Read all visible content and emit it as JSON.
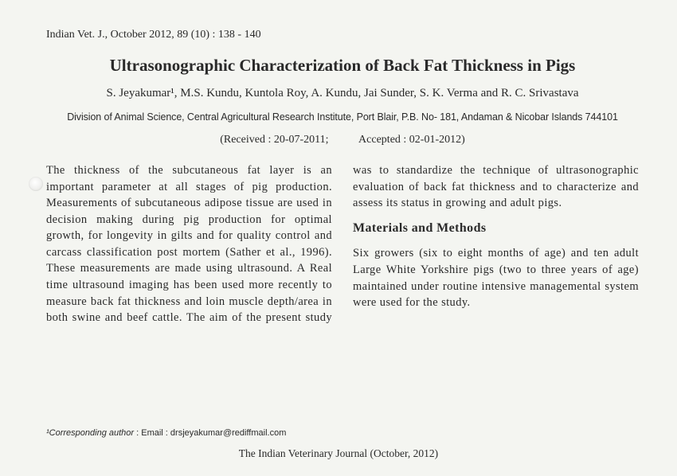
{
  "citation": "Indian Vet. J., October 2012, 89 (10) : 138 - 140",
  "title": "Ultrasonographic Characterization of Back Fat Thickness in Pigs",
  "authors": "S. Jeyakumar¹, M.S. Kundu, Kuntola Roy, A. Kundu, Jai Sunder, S. K. Verma and R. C. Srivastava",
  "affiliation": "Division of Animal Science, Central Agricultural Research Institute, Port Blair, P.B. No- 181, Andaman & Nicobar Islands 744101",
  "dates": {
    "received": "(Received : 20-07-2011;",
    "accepted": "Accepted : 02-01-2012)"
  },
  "body": {
    "intro": "The thickness of the subcutaneous fat layer is an important parameter at all stages of pig production. Measurements of subcutaneous adipose tissue are used in decision making during pig production for optimal growth, for longevity in gilts and for quality control and carcass classification post mortem (Sather et al., 1996). These measurements are made using ultrasound. A Real time ultrasound imaging has been used more recently to measure back fat thickness and loin muscle depth/area in both swine and beef cattle. The aim of the present study was to standardize the technique of ultrasonographic evaluation of back fat thickness and to characterize and assess its status in growing and adult pigs.",
    "heading1": "Materials and Methods",
    "methods": "Six growers (six to eight months of age) and ten adult Large White Yorkshire pigs (two to three years of age) maintained under routine intensive managemental system were used for the study."
  },
  "footnote": {
    "label": "¹Corresponding author",
    "text": " : Email : drsjeyakumar@rediffmail.com"
  },
  "footer": "The Indian Veterinary Journal (October, 2012)"
}
